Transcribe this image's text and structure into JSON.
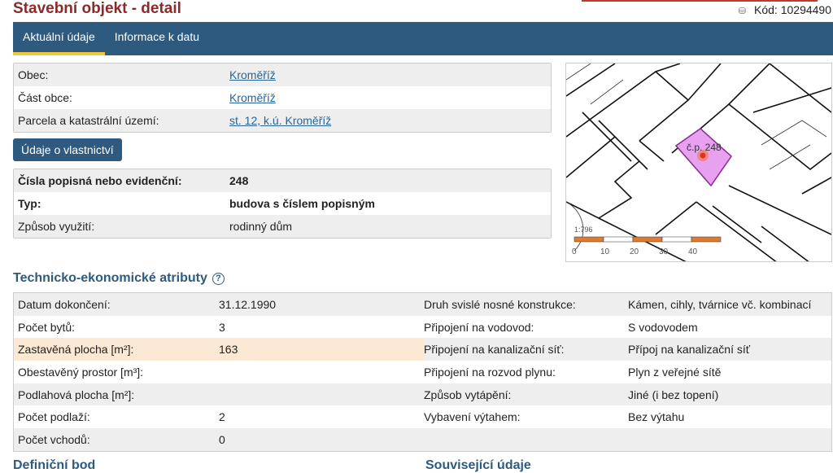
{
  "header": {
    "title": "Stavební objekt - detail",
    "code_icon": "database-icon",
    "code": "Kód: 10294490"
  },
  "tabs": [
    {
      "label": "Aktuální údaje",
      "active": true
    },
    {
      "label": "Informace k datu",
      "active": false
    }
  ],
  "location": [
    {
      "label": "Obec:",
      "value": "Kroměříž"
    },
    {
      "label": "Část obce:",
      "value": "Kroměříž"
    },
    {
      "label": "Parcela a katastrální území:",
      "value": "st. 12, k.ú. Kroměříž"
    }
  ],
  "ownership_button": "Údaje o vlastnictví",
  "building": [
    {
      "label": "Čísla popisná nebo evidenční:",
      "value": "248"
    },
    {
      "label": "Typ:",
      "value": "budova s číslem popisným"
    },
    {
      "label": "Způsob využití:",
      "value": "rodinný dům"
    }
  ],
  "map": {
    "label": "č.p. 248",
    "scale": "1:796",
    "scale_ticks": [
      "0",
      "10",
      "20",
      "30",
      "40"
    ],
    "highlight_color": "#e8a0f0",
    "marker_color": "#f07a30"
  },
  "tech": {
    "title": "Technicko-ekonomické atributy",
    "help_icon": "question-circle-icon",
    "rows": [
      {
        "l1": "Datum dokončení:",
        "v1": "31.12.1990",
        "l2": "Druh svislé nosné konstrukce:",
        "v2": "Kámen, cihly, tvárnice vč. kombinací"
      },
      {
        "l1": "Počet bytů:",
        "v1": "3",
        "l2": "Připojení na vodovod:",
        "v2": "S vodovodem"
      },
      {
        "l1": "Zastavěná plocha [m²]:",
        "v1": "163",
        "l2": "Připojení na kanalizační síť:",
        "v2": "Přípoj na kanalizační síť"
      },
      {
        "l1": "Obestavěný prostor [m³]:",
        "v1": "",
        "l2": "Připojení na rozvod plynu:",
        "v2": "Plyn z veřejné sítě"
      },
      {
        "l1": "Podlahová plocha [m²]:",
        "v1": "",
        "l2": "Způsob vytápění:",
        "v2": "Jiné (i bez topení)"
      },
      {
        "l1": "Počet podlaží:",
        "v1": "2",
        "l2": "Vybavení výtahem:",
        "v2": "Bez výtahu"
      },
      {
        "l1": "Počet vchodů:",
        "v1": "0",
        "l2": "",
        "v2": ""
      }
    ]
  },
  "bottom": {
    "left": "Definiční bod",
    "right": "Související údaje"
  }
}
